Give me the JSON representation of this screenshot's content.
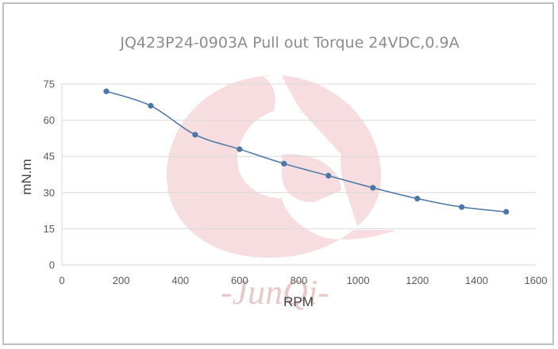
{
  "watermark": {
    "text": "-JunQi-",
    "color": "#e2a8ad"
  },
  "chart_data": {
    "type": "line",
    "title": "JQ423P24-0903A Pull out Torque 24VDC,0.9A",
    "xlabel": "RPM",
    "ylabel": "mN.m",
    "xlim": [
      0,
      1600
    ],
    "ylim": [
      0,
      75
    ],
    "xticks": [
      0,
      200,
      400,
      600,
      800,
      1000,
      1200,
      1400,
      1600
    ],
    "yticks": [
      0,
      15,
      30,
      45,
      60,
      75
    ],
    "grid": "horizontal",
    "legend": "none",
    "line_color": "#4a77a8",
    "x": [
      150,
      300,
      450,
      600,
      750,
      900,
      1050,
      1200,
      1350,
      1500
    ],
    "series": [
      {
        "values": [
          72,
          66,
          54,
          48,
          42,
          37,
          32,
          27.5,
          24,
          22
        ]
      }
    ]
  }
}
